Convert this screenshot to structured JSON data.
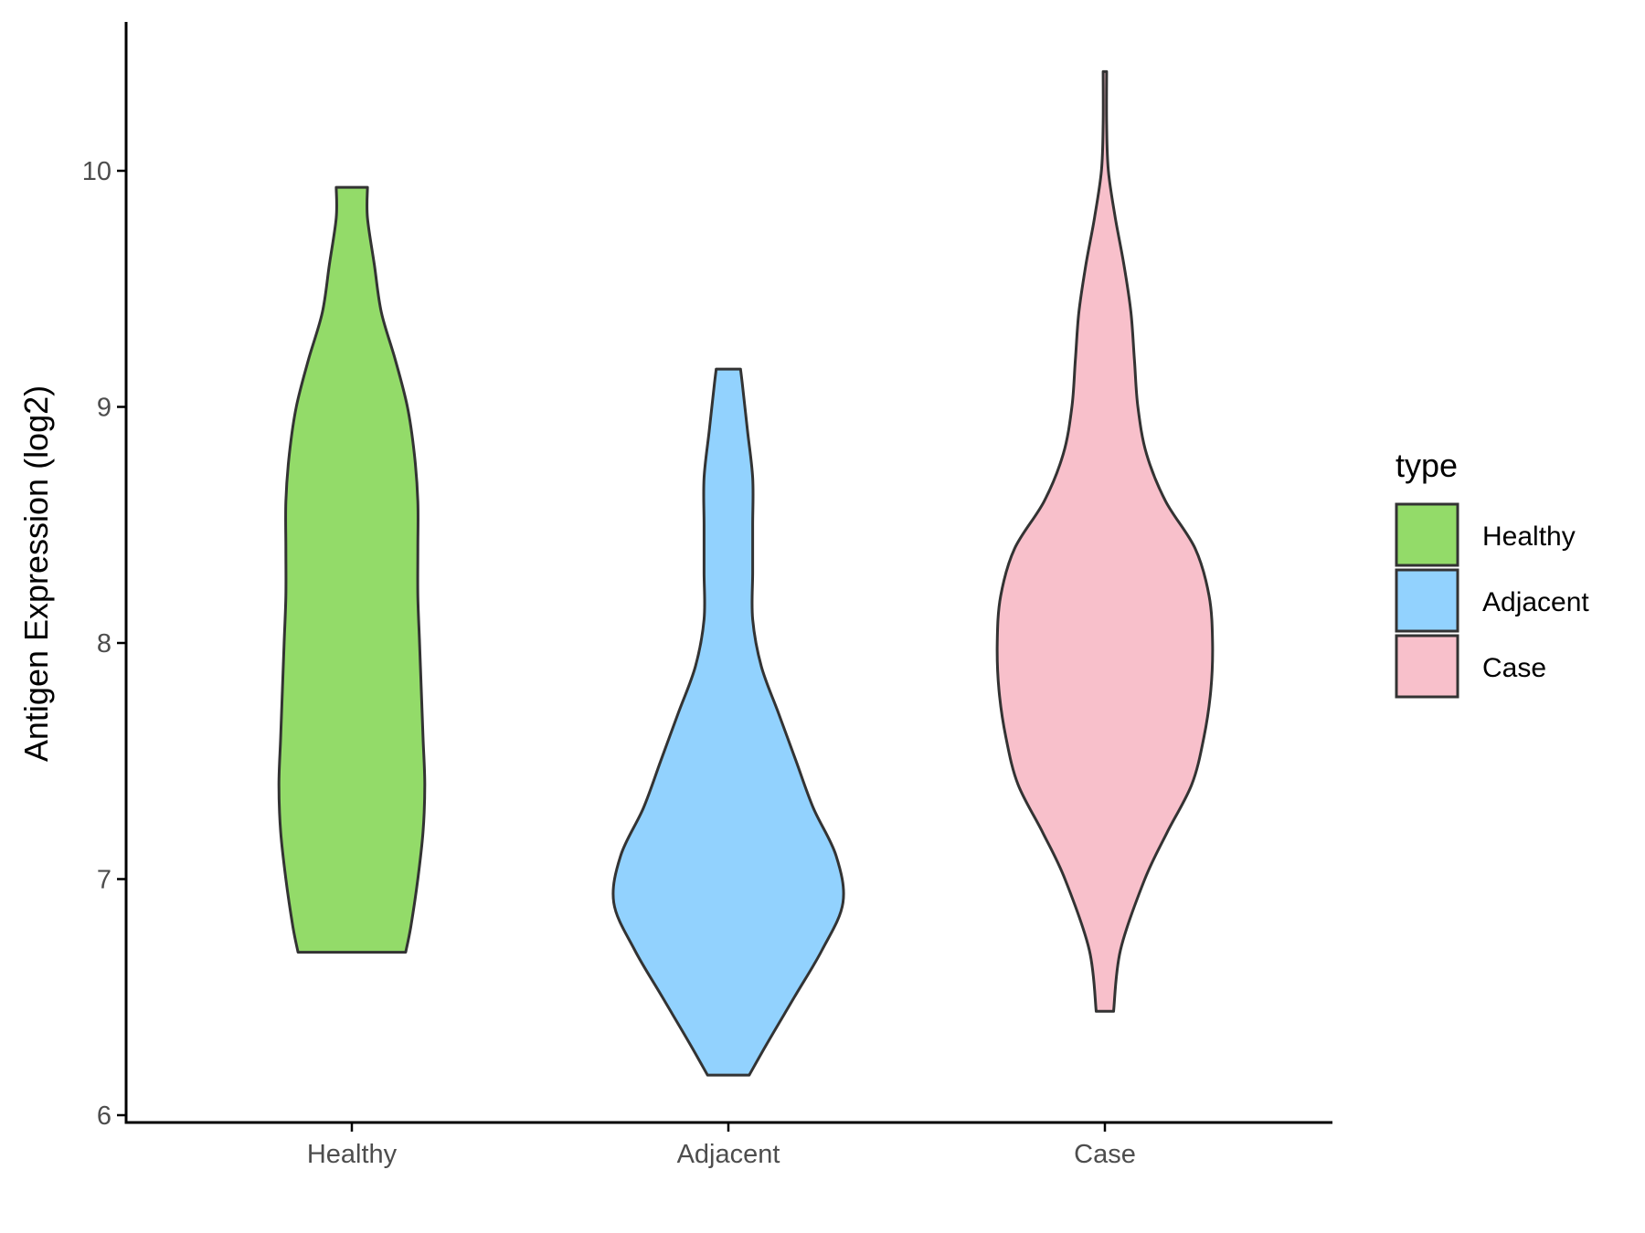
{
  "chart_data": {
    "type": "violin",
    "title": "",
    "xlabel": "",
    "ylabel": "Antigen Expression (log2)",
    "ylim": [
      5.97,
      10.65
    ],
    "yticks": [
      6,
      7,
      8,
      9,
      10
    ],
    "ytick_labels": [
      "6",
      "7",
      "8",
      "9",
      "10"
    ],
    "categories": [
      "Healthy",
      "Adjacent",
      "Case"
    ],
    "grid": false,
    "legend": {
      "title": "type",
      "placement": "right",
      "entries": [
        "Healthy",
        "Adjacent",
        "Case"
      ]
    },
    "series": [
      {
        "name": "Healthy",
        "color": "#93db69",
        "min": 6.69,
        "max": 9.93,
        "density": [
          [
            6.69,
            0.31
          ],
          [
            6.8,
            0.34
          ],
          [
            7.0,
            0.38
          ],
          [
            7.2,
            0.41
          ],
          [
            7.4,
            0.42
          ],
          [
            7.6,
            0.41
          ],
          [
            7.8,
            0.4
          ],
          [
            8.0,
            0.39
          ],
          [
            8.2,
            0.38
          ],
          [
            8.4,
            0.38
          ],
          [
            8.6,
            0.38
          ],
          [
            8.8,
            0.36
          ],
          [
            9.0,
            0.32
          ],
          [
            9.2,
            0.25
          ],
          [
            9.4,
            0.17
          ],
          [
            9.6,
            0.13
          ],
          [
            9.8,
            0.09
          ],
          [
            9.93,
            0.09
          ]
        ]
      },
      {
        "name": "Adjacent",
        "color": "#92d2fe",
        "min": 6.17,
        "max": 9.16,
        "density": [
          [
            6.17,
            0.12
          ],
          [
            6.3,
            0.22
          ],
          [
            6.5,
            0.38
          ],
          [
            6.7,
            0.54
          ],
          [
            6.9,
            0.66
          ],
          [
            7.1,
            0.62
          ],
          [
            7.3,
            0.49
          ],
          [
            7.5,
            0.39
          ],
          [
            7.7,
            0.29
          ],
          [
            7.9,
            0.19
          ],
          [
            8.1,
            0.14
          ],
          [
            8.3,
            0.14
          ],
          [
            8.5,
            0.14
          ],
          [
            8.7,
            0.14
          ],
          [
            8.9,
            0.11
          ],
          [
            9.1,
            0.08
          ],
          [
            9.16,
            0.07
          ]
        ]
      },
      {
        "name": "Case",
        "color": "#f8c0cb",
        "min": 6.44,
        "max": 10.42,
        "density": [
          [
            6.44,
            0.05
          ],
          [
            6.7,
            0.09
          ],
          [
            7.0,
            0.23
          ],
          [
            7.2,
            0.36
          ],
          [
            7.4,
            0.5
          ],
          [
            7.6,
            0.57
          ],
          [
            7.8,
            0.61
          ],
          [
            8.0,
            0.62
          ],
          [
            8.2,
            0.6
          ],
          [
            8.4,
            0.52
          ],
          [
            8.6,
            0.35
          ],
          [
            8.8,
            0.24
          ],
          [
            9.0,
            0.19
          ],
          [
            9.2,
            0.17
          ],
          [
            9.4,
            0.15
          ],
          [
            9.6,
            0.11
          ],
          [
            9.8,
            0.06
          ],
          [
            10.0,
            0.02
          ],
          [
            10.2,
            0.01
          ],
          [
            10.42,
            0.01
          ]
        ]
      }
    ]
  },
  "colors": {
    "outline": "#333333",
    "axis": "#000000",
    "tick_label": "#4d4d4d"
  }
}
